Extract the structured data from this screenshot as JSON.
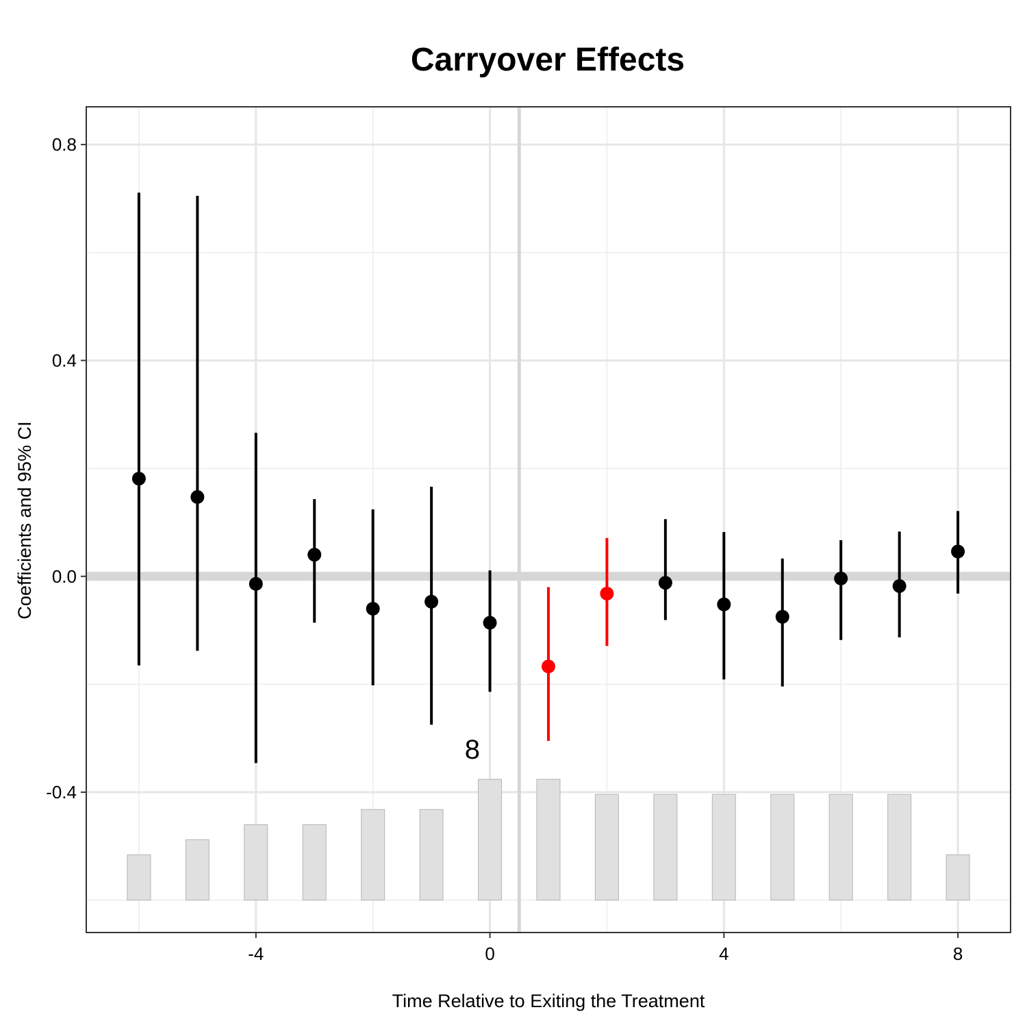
{
  "chart_data": {
    "type": "scatter",
    "title": "Carryover Effects",
    "xlabel": "Time Relative to Exiting the Treatment",
    "ylabel": "Coefficients and 95% CI",
    "xlim": [
      -6.9,
      8.9
    ],
    "ylim": [
      -0.66,
      0.87
    ],
    "x_ticks": [
      -4,
      0,
      4,
      8
    ],
    "x_tick_labels": [
      "-4",
      "0",
      "4",
      "8"
    ],
    "y_ticks": [
      -0.4,
      0.0,
      0.4,
      0.8
    ],
    "y_tick_labels": [
      "-0.4",
      "0.0",
      "0.4",
      "0.8"
    ],
    "grid": true,
    "reference_lines": {
      "horizontal_y": 0.0,
      "vertical_x": 0.5
    },
    "point_colors": {
      "default": "#000000",
      "highlight": "#ff0000"
    },
    "points": [
      {
        "x": -6,
        "y": 0.181,
        "lower": -0.165,
        "upper": 0.711,
        "highlight": false
      },
      {
        "x": -5,
        "y": 0.147,
        "lower": -0.138,
        "upper": 0.705,
        "highlight": false
      },
      {
        "x": -4,
        "y": -0.014,
        "lower": -0.346,
        "upper": 0.266,
        "highlight": false
      },
      {
        "x": -3,
        "y": 0.04,
        "lower": -0.086,
        "upper": 0.143,
        "highlight": false
      },
      {
        "x": -2,
        "y": -0.06,
        "lower": -0.202,
        "upper": 0.124,
        "highlight": false
      },
      {
        "x": -1,
        "y": -0.047,
        "lower": -0.275,
        "upper": 0.166,
        "highlight": false
      },
      {
        "x": 0,
        "y": -0.086,
        "lower": -0.214,
        "upper": 0.011,
        "highlight": false
      },
      {
        "x": 1,
        "y": -0.167,
        "lower": -0.305,
        "upper": -0.02,
        "highlight": true
      },
      {
        "x": 2,
        "y": -0.032,
        "lower": -0.129,
        "upper": 0.071,
        "highlight": true
      },
      {
        "x": 3,
        "y": -0.012,
        "lower": -0.081,
        "upper": 0.106,
        "highlight": false
      },
      {
        "x": 4,
        "y": -0.052,
        "lower": -0.191,
        "upper": 0.082,
        "highlight": false
      },
      {
        "x": 5,
        "y": -0.075,
        "lower": -0.204,
        "upper": 0.033,
        "highlight": false
      },
      {
        "x": 6,
        "y": -0.004,
        "lower": -0.118,
        "upper": 0.067,
        "highlight": false
      },
      {
        "x": 7,
        "y": -0.018,
        "lower": -0.113,
        "upper": 0.083,
        "highlight": false
      },
      {
        "x": 8,
        "y": 0.046,
        "lower": -0.032,
        "upper": 0.121,
        "highlight": false
      }
    ],
    "count_bars": {
      "baseline": -0.6,
      "counts": [
        3,
        4,
        5,
        5,
        6,
        6,
        8,
        8,
        7,
        7,
        7,
        7,
        7,
        7,
        3
      ],
      "tops": [
        -0.516,
        -0.488,
        -0.46,
        -0.46,
        -0.432,
        -0.432,
        -0.376,
        -0.376,
        -0.404,
        -0.404,
        -0.404,
        -0.404,
        -0.404,
        -0.404,
        -0.516
      ],
      "max_label": "8",
      "max_label_x": -0.3,
      "max_label_y": -0.32
    }
  }
}
